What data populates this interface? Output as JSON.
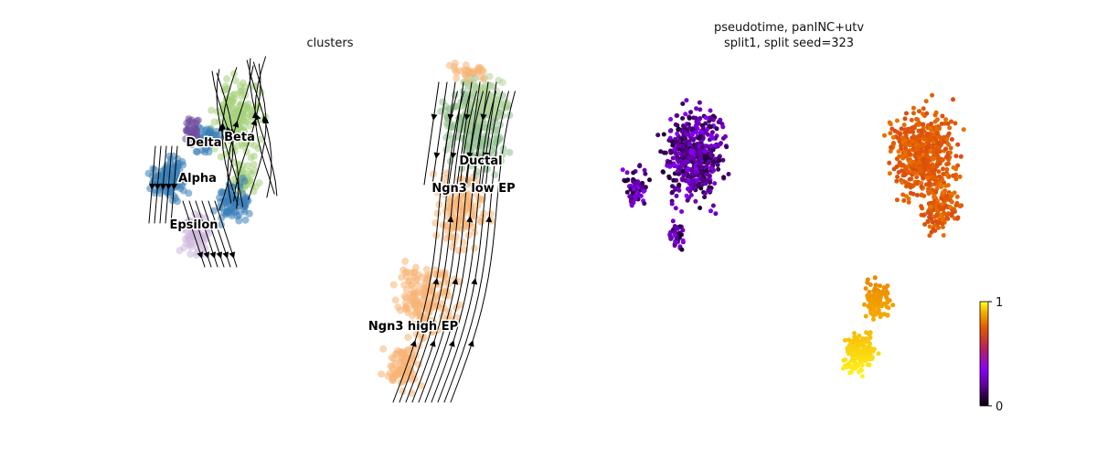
{
  "panels": [
    {
      "title_lines": [
        "clusters"
      ]
    },
    {
      "title_lines": [
        "pseudotime, panINC+utv",
        "split1, split seed=323"
      ]
    }
  ],
  "chart_data": [
    {
      "type": "scatter",
      "title": "clusters",
      "overlay": "velocity streamlines",
      "axes_visible": false,
      "legend": "on data",
      "clusters": [
        {
          "name": "Alpha",
          "color": "#3a7fb8"
        },
        {
          "name": "Beta",
          "color": "#a6d17c"
        },
        {
          "name": "Delta",
          "color": "#6d4c9c"
        },
        {
          "name": "Epsilon",
          "color": "#cdb8dc"
        },
        {
          "name": "Ductal",
          "color": "#8fbf8f"
        },
        {
          "name": "Ngn3 low EP",
          "color": "#b2d39a"
        },
        {
          "name": "Ngn3 high EP",
          "color": "#f7b476"
        }
      ]
    },
    {
      "type": "scatter",
      "title": "pseudotime, panINC+utv\nsplit1, split seed=323",
      "axes_visible": false,
      "colormap": "gnuplot",
      "colorbar": {
        "min": 0,
        "max": 1,
        "ticks": [
          "0",
          "1"
        ]
      },
      "regions": [
        {
          "group": "Alpha/Beta/Delta/Epsilon",
          "pseudotime_range": [
            0.05,
            0.35
          ]
        },
        {
          "group": "Ductal / Ngn3 low EP",
          "pseudotime_range": [
            0.7,
            0.8
          ]
        },
        {
          "group": "Ngn3 high EP",
          "pseudotime_range": [
            0.8,
            1.0
          ]
        }
      ]
    }
  ]
}
